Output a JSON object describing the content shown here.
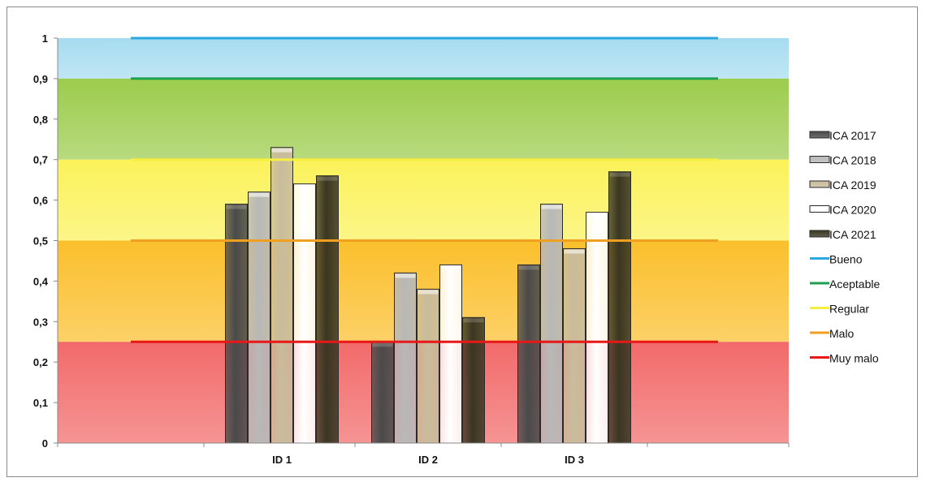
{
  "chart_data": {
    "type": "bar",
    "title": "",
    "xlabel": "",
    "ylabel": "",
    "ylim": [
      0,
      1
    ],
    "yticks": [
      0,
      0.1,
      0.2,
      0.3,
      0.4,
      0.5,
      0.6,
      0.7,
      0.8,
      0.9,
      1
    ],
    "ytick_labels": [
      "0",
      "0,1",
      "0,2",
      "0,3",
      "0,4",
      "0,5",
      "0,6",
      "0,7",
      "0,8",
      "0,9",
      "1"
    ],
    "categories": [
      "ID 1",
      "ID 2",
      "ID 3"
    ],
    "series": [
      {
        "name": "ICA 2017",
        "values": [
          0.59,
          0.25,
          0.44
        ],
        "color": "#4a4a4a"
      },
      {
        "name": "ICA 2018",
        "values": [
          0.62,
          0.42,
          0.59
        ],
        "color": "#b8b8b8"
      },
      {
        "name": "ICA 2019",
        "values": [
          0.73,
          0.38,
          0.48
        ],
        "color": "#c9bc9c"
      },
      {
        "name": "ICA 2020",
        "values": [
          0.64,
          0.44,
          0.57
        ],
        "color": "#ffffff"
      },
      {
        "name": "ICA 2021",
        "values": [
          0.66,
          0.31,
          0.67
        ],
        "color": "#3a3622"
      }
    ],
    "bands": [
      {
        "from": 0.9,
        "to": 1.0,
        "color": "#a6dcf0"
      },
      {
        "from": 0.7,
        "to": 0.9,
        "color": "#9ccc4c"
      },
      {
        "from": 0.5,
        "to": 0.7,
        "color": "#fbf25a"
      },
      {
        "from": 0.25,
        "to": 0.5,
        "color": "#fbbf2c"
      },
      {
        "from": 0.0,
        "to": 0.25,
        "color": "#f26a6a"
      }
    ],
    "threshold_lines": [
      {
        "name": "Bueno",
        "value": 1.0,
        "color": "#2aa8e0"
      },
      {
        "name": "Aceptable",
        "value": 0.9,
        "color": "#1ea050"
      },
      {
        "name": "Regular",
        "value": 0.7,
        "color": "#f5f040"
      },
      {
        "name": "Malo",
        "value": 0.5,
        "color": "#f0a020"
      },
      {
        "name": "Muy malo",
        "value": 0.25,
        "color": "#e81818"
      }
    ],
    "grid": false,
    "legend_position": "right"
  }
}
